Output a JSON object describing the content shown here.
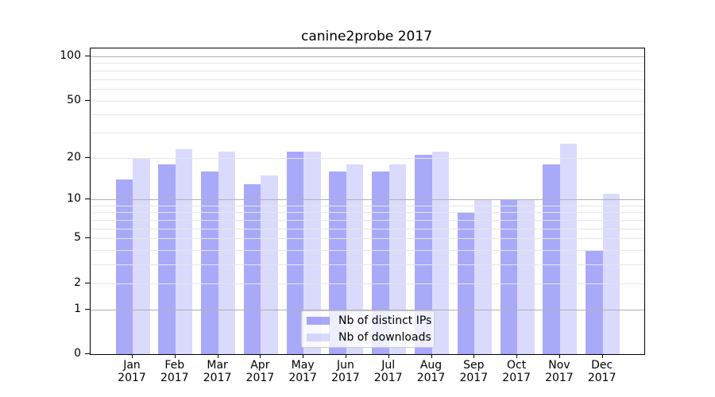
{
  "title": "canine2probe 2017",
  "chart_data": {
    "type": "bar",
    "title": "canine2probe 2017",
    "categories": [
      "Jan",
      "Feb",
      "Mar",
      "Apr",
      "May",
      "Jun",
      "Jul",
      "Aug",
      "Sep",
      "Oct",
      "Nov",
      "Dec"
    ],
    "x_year": "2017",
    "series": [
      {
        "name": "Nb of distinct IPs",
        "color": "rgba(10,10,240,0.35)",
        "values": [
          14,
          18,
          16,
          13,
          22,
          16,
          16,
          21,
          8,
          10,
          18,
          4
        ]
      },
      {
        "name": "Nb of downloads",
        "color": "rgba(10,10,240,0.15)",
        "values": [
          20,
          23,
          22,
          15,
          22,
          18,
          18,
          22,
          10,
          10,
          25,
          11
        ]
      }
    ],
    "xlabel": "",
    "ylabel": "",
    "y_scale": "log10(value+1)",
    "ylim": [
      0,
      113
    ],
    "y_tick_labels": [
      "100",
      "50",
      "20",
      "10",
      "5",
      "2",
      "1",
      "0"
    ],
    "y_tick_values": [
      100,
      50,
      20,
      10,
      5,
      2,
      1,
      0
    ],
    "y_major_gridlines": [
      1,
      10,
      100
    ],
    "y_minor_gridlines": [
      2,
      3,
      4,
      5,
      6,
      7,
      8,
      9,
      20,
      30,
      40,
      50,
      60,
      70,
      80,
      90
    ],
    "grid": true,
    "legend_position": "lower center"
  },
  "legend": {
    "items": [
      {
        "label": "Nb of distinct IPs",
        "color": "rgba(10,10,240,0.35)"
      },
      {
        "label": "Nb of downloads",
        "color": "rgba(10,10,240,0.15)"
      }
    ]
  },
  "colors": {
    "bar_dark": "rgba(10,10,240,0.35)",
    "bar_light": "rgba(10,10,240,0.15)",
    "grid_major": "#b0b0b0",
    "grid_minor": "#e6e6e6",
    "spine": "#000000",
    "background": "#ffffff"
  }
}
